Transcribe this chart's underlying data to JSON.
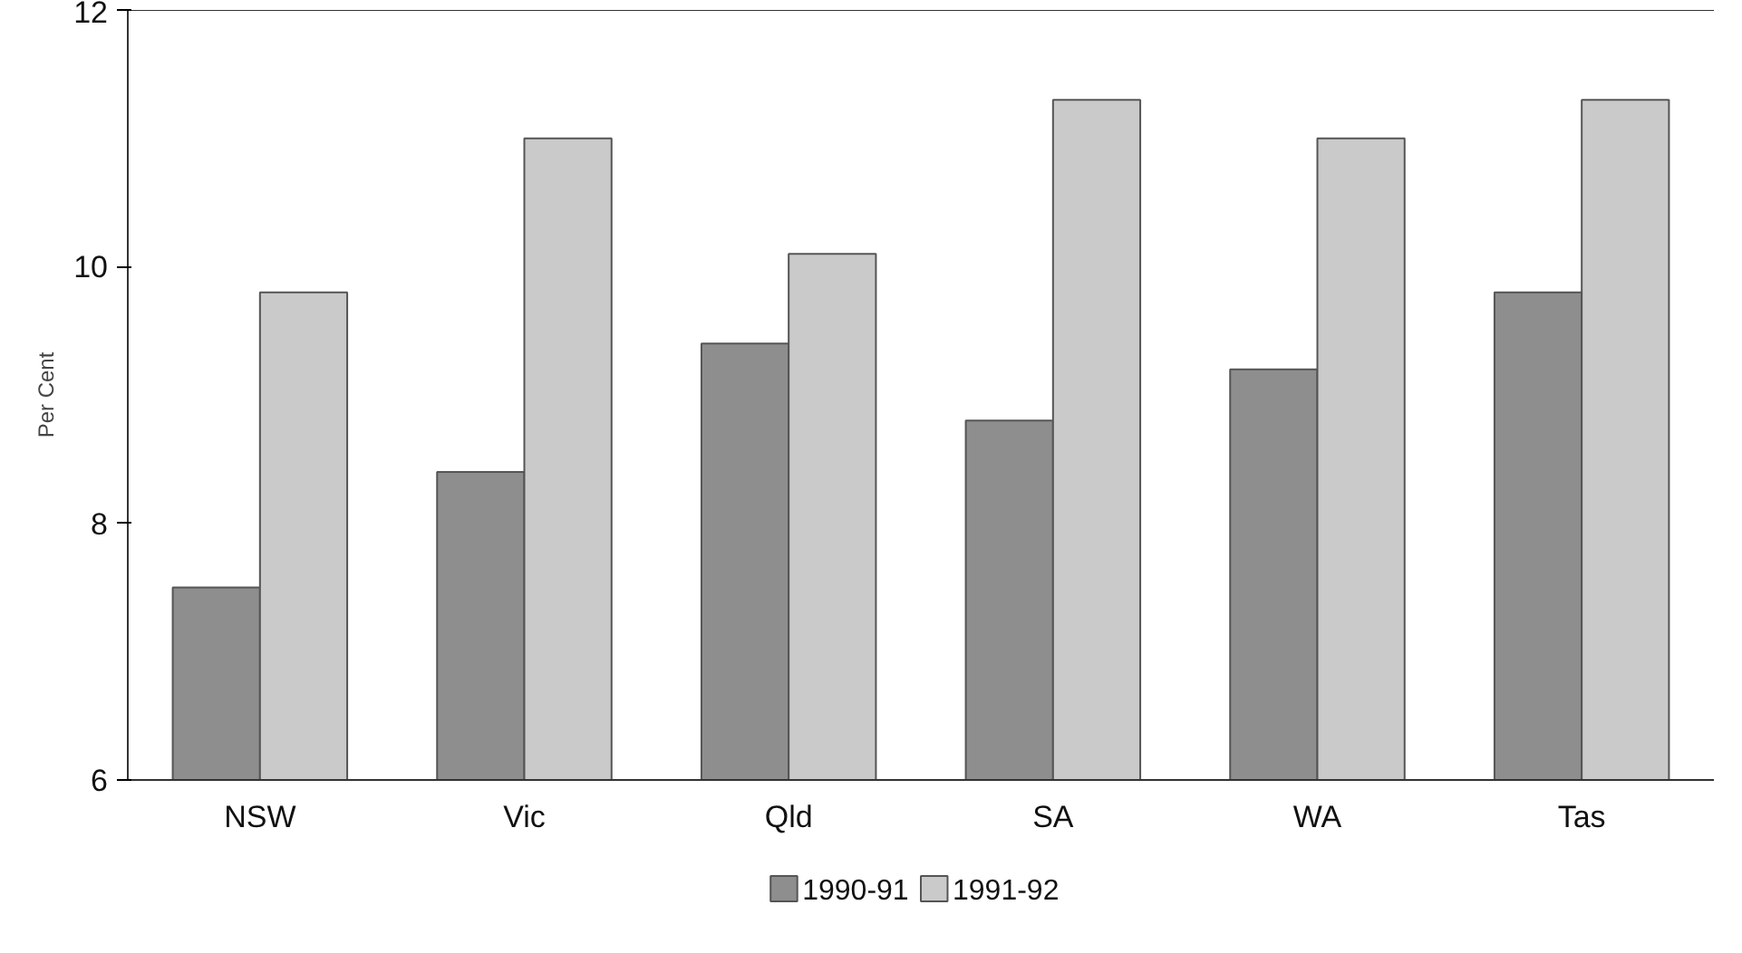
{
  "chart_data": {
    "type": "bar",
    "ylabel": "Per Cent",
    "categories": [
      "NSW",
      "Vic",
      "Qld",
      "SA",
      "WA",
      "Tas"
    ],
    "series": [
      {
        "name": "1990-91",
        "color": "#8e8e8e",
        "values": [
          7.5,
          8.4,
          9.4,
          8.8,
          9.2,
          9.8
        ]
      },
      {
        "name": "1991-92",
        "color": "#cacaca",
        "values": [
          9.8,
          11.0,
          10.1,
          11.3,
          11.0,
          11.3
        ]
      }
    ],
    "ylim": [
      6,
      12
    ],
    "yticks": [
      6,
      8,
      10,
      12
    ],
    "grid": false,
    "legend": "bottom"
  }
}
